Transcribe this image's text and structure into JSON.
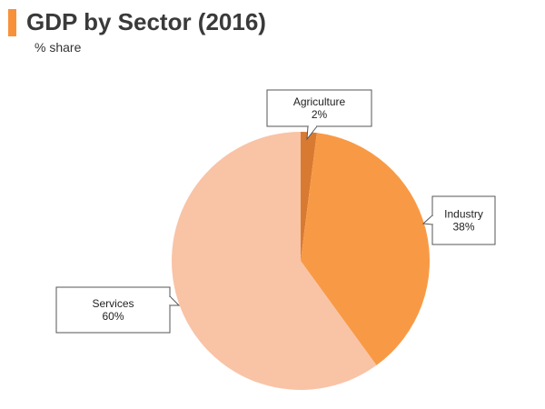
{
  "header": {
    "title": "GDP by Sector (2016)",
    "subtitle": "% share"
  },
  "colors": {
    "accent": "#f7923a",
    "agriculture": "#d97a32",
    "industry": "#f89a45",
    "services": "#f9c3a6",
    "title": "#3a3a3a"
  },
  "chart_data": {
    "type": "pie",
    "title": "GDP by Sector (2016)",
    "subtitle": "% share",
    "start": "12 o'clock",
    "direction": "clockwise",
    "slices": [
      {
        "label": "Agriculture",
        "value": 2,
        "display": "2%",
        "color": "#d97a32"
      },
      {
        "label": "Industry",
        "value": 38,
        "display": "38%",
        "color": "#f89a45"
      },
      {
        "label": "Services",
        "value": 60,
        "display": "60%",
        "color": "#f9c3a6"
      }
    ]
  }
}
